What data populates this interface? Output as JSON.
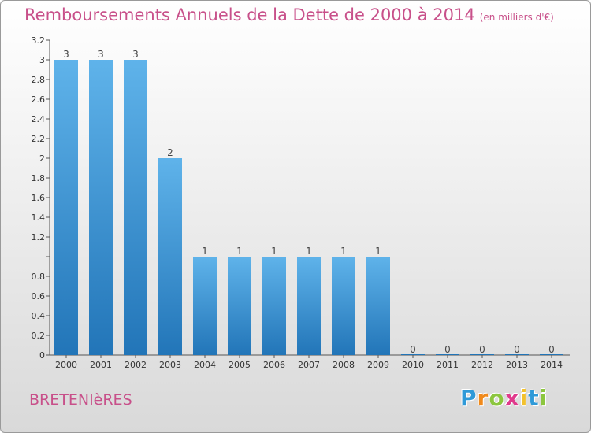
{
  "title": "Remboursements Annuels de la Dette de 2000 à 2014",
  "subtitle": "(en milliers d'€)",
  "commune": "BRETENIèRES",
  "logo": {
    "letters": [
      "P",
      "r",
      "o",
      "x",
      "i",
      "t",
      "i"
    ],
    "colors": [
      "#2f9ad8",
      "#f08a1c",
      "#8cc63f",
      "#e03a8c",
      "#f2c12e",
      "#2f9ad8",
      "#8cc63f"
    ]
  },
  "colors": {
    "bar_top": "#5fb3ea",
    "bar_bottom": "#2275b8",
    "title": "#c8508a",
    "axis": "#555555"
  },
  "chart_data": {
    "type": "bar",
    "title": "Remboursements Annuels de la Dette de 2000 à 2014",
    "subtitle": "(en milliers d'€)",
    "categories": [
      "2000",
      "2001",
      "2002",
      "2003",
      "2004",
      "2005",
      "2006",
      "2007",
      "2008",
      "2009",
      "2010",
      "2011",
      "2012",
      "2013",
      "2014"
    ],
    "values": [
      3,
      3,
      3,
      2,
      1,
      1,
      1,
      1,
      1,
      1,
      0,
      0,
      0,
      0,
      0
    ],
    "data_labels": [
      "3",
      "3",
      "3",
      "2",
      "1",
      "1",
      "1",
      "1",
      "1",
      "1",
      "0",
      "0",
      "0",
      "0",
      "0"
    ],
    "y_ticks": [
      0,
      0.2,
      0.4,
      0.6,
      0.8,
      1,
      1.2,
      1.4,
      1.6,
      1.8,
      2,
      2.2,
      2.4,
      2.6,
      2.8,
      3,
      3.2
    ],
    "y_tick_labels": [
      "0",
      "0.2",
      "0.4",
      "0.6",
      "0.8",
      "",
      "1.2",
      "1.4",
      "1.6",
      "1.8",
      "2",
      "2.2",
      "2.4",
      "2.6",
      "2.8",
      "3",
      "3.2"
    ],
    "ylim": [
      0,
      3.2
    ],
    "xlabel": "",
    "ylabel": "",
    "grid": false,
    "legend": "none"
  }
}
